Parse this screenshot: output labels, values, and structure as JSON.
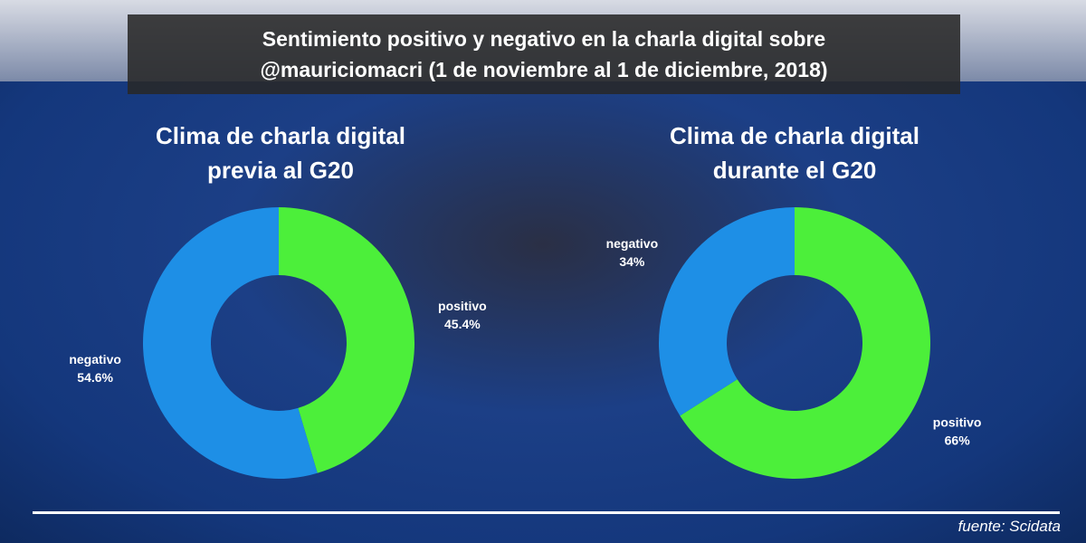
{
  "title": "Sentimiento positivo y negativo en la charla digital sobre @mauriciomacri (1 de noviembre al 1 de diciembre, 2018)",
  "source": "fuente: Scidata",
  "chart_data": [
    {
      "type": "donut",
      "title": "Clima de charla digital previa al G20",
      "categories": [
        "positivo",
        "negativo"
      ],
      "values": [
        45.4,
        54.6
      ],
      "value_labels": [
        "45.4%",
        "54.6%"
      ],
      "colors": [
        "#4cef3a",
        "#1e8fe6"
      ]
    },
    {
      "type": "donut",
      "title": "Clima de charla digital durante el G20",
      "categories": [
        "positivo",
        "negativo"
      ],
      "values": [
        66,
        34
      ],
      "value_labels": [
        "66%",
        "34%"
      ],
      "colors": [
        "#4cef3a",
        "#1e8fe6"
      ]
    }
  ]
}
